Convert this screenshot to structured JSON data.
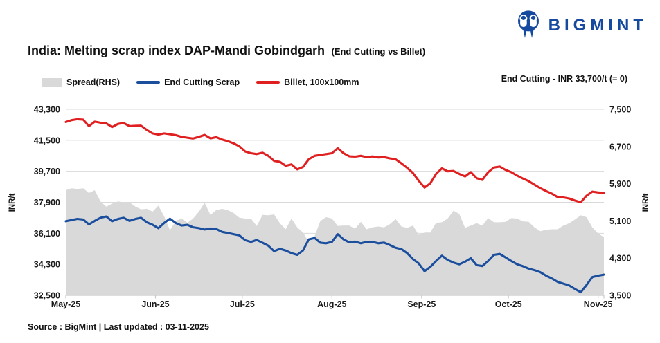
{
  "header": {
    "brand": "BIGMINT",
    "title": "India: Melting scrap index DAP-Mandi Gobindgarh",
    "subtitle": "(End Cutting vs Billet)"
  },
  "annotation": "End Cutting - INR 33,700/t (= 0)",
  "legend": {
    "items": [
      {
        "label": "Spread(RHS)",
        "color": "#d9d9d9",
        "type": "area"
      },
      {
        "label": "End Cutting Scrap",
        "color": "#1b4f9e",
        "type": "line"
      },
      {
        "label": "Billet, 100x100mm",
        "color": "#e02020",
        "type": "line"
      }
    ]
  },
  "footer": {
    "source": "Source : BigMint | Last updated : 03-11-2025"
  },
  "colors": {
    "brand": "#164a9e",
    "grid": "#d9d9d9",
    "axis": "#c9c9c9",
    "text": "#1a1a1a",
    "spread": "#d9d9d9",
    "end_cutting": "#1b4f9e",
    "billet": "#e02020"
  },
  "chart_data": {
    "type": "line",
    "title": "India: Melting scrap index DAP-Mandi Gobindgarh (End Cutting vs Billet)",
    "annotation": "End Cutting - INR 33,700/t (= 0)",
    "x_unit": "days since 01-05-2025, one point every 2 days",
    "x_axis": {
      "tick_labels": [
        "May-25",
        "Jun-25",
        "Jul-25",
        "Aug-25",
        "Sep-25",
        "Oct-25",
        "Nov-25"
      ],
      "tick_day_offsets": [
        0,
        31,
        61,
        92,
        123,
        153,
        184
      ],
      "total_days": 186
    },
    "left_axis": {
      "label": "INR/t",
      "min": 32500,
      "max": 43300,
      "ticks": [
        43300,
        41500,
        39700,
        37900,
        36100,
        34300,
        32500
      ]
    },
    "right_axis": {
      "label": "INR/t",
      "min": 3500,
      "max": 7500,
      "ticks": [
        7500,
        6700,
        5900,
        5100,
        4300,
        3500
      ]
    },
    "grid": true,
    "legend_position": "top-left",
    "series": [
      {
        "name": "Spread(RHS)",
        "axis": "right",
        "type": "area",
        "color": "#d9d9d9",
        "values": [
          5760,
          5800,
          5785,
          5800,
          5700,
          5760,
          5520,
          5405,
          5470,
          5520,
          5500,
          5500,
          5410,
          5350,
          5360,
          5300,
          5430,
          5200,
          4900,
          5100,
          5150,
          5060,
          5150,
          5300,
          5490,
          5230,
          5330,
          5360,
          5330,
          5270,
          5170,
          5150,
          5150,
          4990,
          5230,
          5220,
          5240,
          5050,
          4920,
          5150,
          4960,
          4850,
          4650,
          4770,
          5100,
          5180,
          5150,
          4990,
          5000,
          5000,
          4930,
          5080,
          4920,
          4960,
          4980,
          4960,
          5030,
          5140,
          4980,
          4950,
          5000,
          4800,
          4850,
          4850,
          5060,
          5070,
          5150,
          5320,
          5250,
          4950,
          5000,
          5050,
          5000,
          5160,
          5070,
          5070,
          5080,
          5160,
          5150,
          5090,
          5080,
          4960,
          4880,
          4910,
          4920,
          4920,
          5000,
          5050,
          5130,
          5220,
          5180,
          4960,
          4830,
          4750
        ]
      },
      {
        "name": "End Cutting Scrap",
        "axis": "left",
        "type": "line",
        "color": "#1b4f9e",
        "values": [
          36800,
          36870,
          36935,
          36900,
          36620,
          36820,
          37000,
          37075,
          36800,
          36930,
          37000,
          36820,
          36930,
          37000,
          36740,
          36600,
          36400,
          36700,
          36950,
          36700,
          36550,
          36590,
          36450,
          36400,
          36320,
          36380,
          36350,
          36180,
          36120,
          36050,
          35980,
          35700,
          35600,
          35710,
          35550,
          35380,
          35060,
          35200,
          35100,
          34950,
          34850,
          35100,
          35750,
          35830,
          35550,
          35520,
          35600,
          36050,
          35750,
          35570,
          35620,
          35520,
          35600,
          35600,
          35520,
          35560,
          35420,
          35260,
          35180,
          34950,
          34600,
          34350,
          33900,
          34150,
          34490,
          34800,
          34550,
          34400,
          34300,
          34450,
          34650,
          34250,
          34200,
          34490,
          34850,
          34900,
          34700,
          34490,
          34300,
          34190,
          34050,
          33960,
          33840,
          33640,
          33480,
          33280,
          33180,
          33070,
          32870,
          32680,
          33100,
          33560,
          33640,
          33700
        ]
      },
      {
        "name": "Billet, 100x100mm",
        "axis": "left",
        "type": "line",
        "color": "#e02020",
        "values": [
          42560,
          42670,
          42720,
          42700,
          42320,
          42580,
          42520,
          42480,
          42270,
          42450,
          42500,
          42320,
          42340,
          42350,
          42100,
          41900,
          41830,
          41900,
          41850,
          41800,
          41700,
          41650,
          41600,
          41700,
          41810,
          41610,
          41680,
          41540,
          41450,
          41320,
          41150,
          40850,
          40750,
          40700,
          40780,
          40600,
          40300,
          40250,
          40020,
          40100,
          39810,
          39950,
          40400,
          40600,
          40650,
          40700,
          40750,
          41040,
          40750,
          40570,
          40550,
          40600,
          40520,
          40560,
          40500,
          40520,
          40450,
          40400,
          40160,
          39900,
          39600,
          39150,
          38750,
          39000,
          39550,
          39870,
          39700,
          39720,
          39550,
          39400,
          39650,
          39300,
          39200,
          39650,
          39920,
          39970,
          39780,
          39650,
          39450,
          39280,
          39130,
          38920,
          38720,
          38550,
          38400,
          38200,
          38180,
          38120,
          38000,
          37900,
          38280,
          38520,
          38470,
          38450
        ]
      }
    ]
  }
}
